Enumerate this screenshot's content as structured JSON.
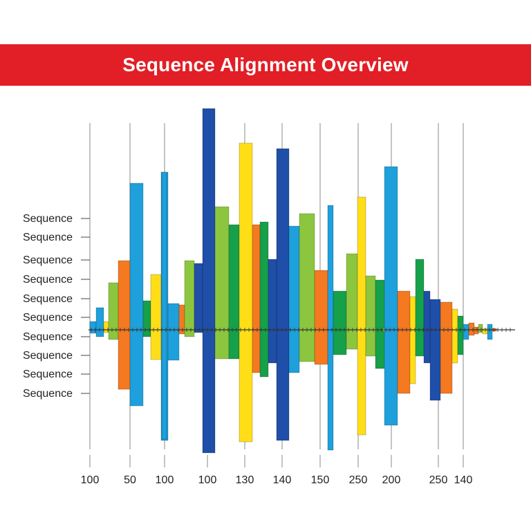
{
  "title": "Sequence Alignment Overview",
  "colors": {
    "banner": "#e21e26",
    "B": "#1ea0dc",
    "N": "#1f4fa8",
    "G": "#8cc63f",
    "D": "#16a04a",
    "O": "#f47920",
    "Y": "#ffde17"
  },
  "chart_data": {
    "type": "bar",
    "ylabels": [
      "Sequence",
      "Sequence",
      "Sequence",
      "Sequence",
      "Sequence",
      "Sequence",
      "Sequence",
      "Sequence",
      "Sequence",
      "Sequence"
    ],
    "xlabels": [
      "100",
      "50",
      "100",
      "100",
      "130",
      "140",
      "150",
      "250",
      "200",
      "250",
      "140"
    ],
    "bars": [
      {
        "c": "B",
        "up": 12,
        "down": 5
      },
      {
        "c": "B",
        "up": 32,
        "down": 10
      },
      {
        "c": "Y",
        "up": 12,
        "down": 4
      },
      {
        "c": "G",
        "up": 68,
        "down": 14
      },
      {
        "c": "O",
        "up": 100,
        "down": 86
      },
      {
        "c": "B",
        "up": 212,
        "down": 110
      },
      {
        "c": "D",
        "up": 42,
        "down": 10
      },
      {
        "c": "Y",
        "up": 80,
        "down": 43
      },
      {
        "c": "B",
        "up": 228,
        "down": 160
      },
      {
        "c": "B",
        "up": 38,
        "down": 44
      },
      {
        "c": "O",
        "up": 36,
        "down": 6
      },
      {
        "c": "G",
        "up": 100,
        "down": 10
      },
      {
        "c": "N",
        "up": 96,
        "down": 4
      },
      {
        "c": "N",
        "up": 320,
        "down": 178
      },
      {
        "c": "G",
        "up": 178,
        "down": 42
      },
      {
        "c": "D",
        "up": 152,
        "down": 42
      },
      {
        "c": "Y",
        "up": 270,
        "down": 162
      },
      {
        "c": "O",
        "up": 152,
        "down": 62
      },
      {
        "c": "D",
        "up": 156,
        "down": 68
      },
      {
        "c": "N",
        "up": 102,
        "down": 48
      },
      {
        "c": "N",
        "up": 262,
        "down": 160
      },
      {
        "c": "B",
        "up": 150,
        "down": 62
      },
      {
        "c": "G",
        "up": 168,
        "down": 46
      },
      {
        "c": "O",
        "up": 86,
        "down": 50
      },
      {
        "c": "B",
        "up": 180,
        "down": 174
      },
      {
        "c": "D",
        "up": 56,
        "down": 36
      },
      {
        "c": "G",
        "up": 110,
        "down": 28
      },
      {
        "c": "Y",
        "up": 192,
        "down": 152
      },
      {
        "c": "G",
        "up": 78,
        "down": 38
      },
      {
        "c": "D",
        "up": 72,
        "down": 56
      },
      {
        "c": "Y",
        "up": 2,
        "down": 2
      },
      {
        "c": "B",
        "up": 236,
        "down": 138
      },
      {
        "c": "O",
        "up": 56,
        "down": 92
      },
      {
        "c": "Y",
        "up": 48,
        "down": 78
      },
      {
        "c": "D",
        "up": 102,
        "down": 38
      },
      {
        "c": "N",
        "up": 56,
        "down": 48
      },
      {
        "c": "N",
        "up": 44,
        "down": 102
      },
      {
        "c": "O",
        "up": 40,
        "down": 92
      },
      {
        "c": "Y",
        "up": 30,
        "down": 48
      },
      {
        "c": "D",
        "up": 20,
        "down": 36
      },
      {
        "c": "B",
        "up": 8,
        "down": 14
      },
      {
        "c": "O",
        "up": 10,
        "down": 8
      },
      {
        "c": "O",
        "up": 4,
        "down": 6
      },
      {
        "c": "G",
        "up": 8,
        "down": 4
      },
      {
        "c": "Y",
        "up": 2,
        "down": 6
      },
      {
        "c": "B",
        "up": 8,
        "down": 14
      },
      {
        "c": "O",
        "up": 2,
        "down": 2
      }
    ]
  }
}
